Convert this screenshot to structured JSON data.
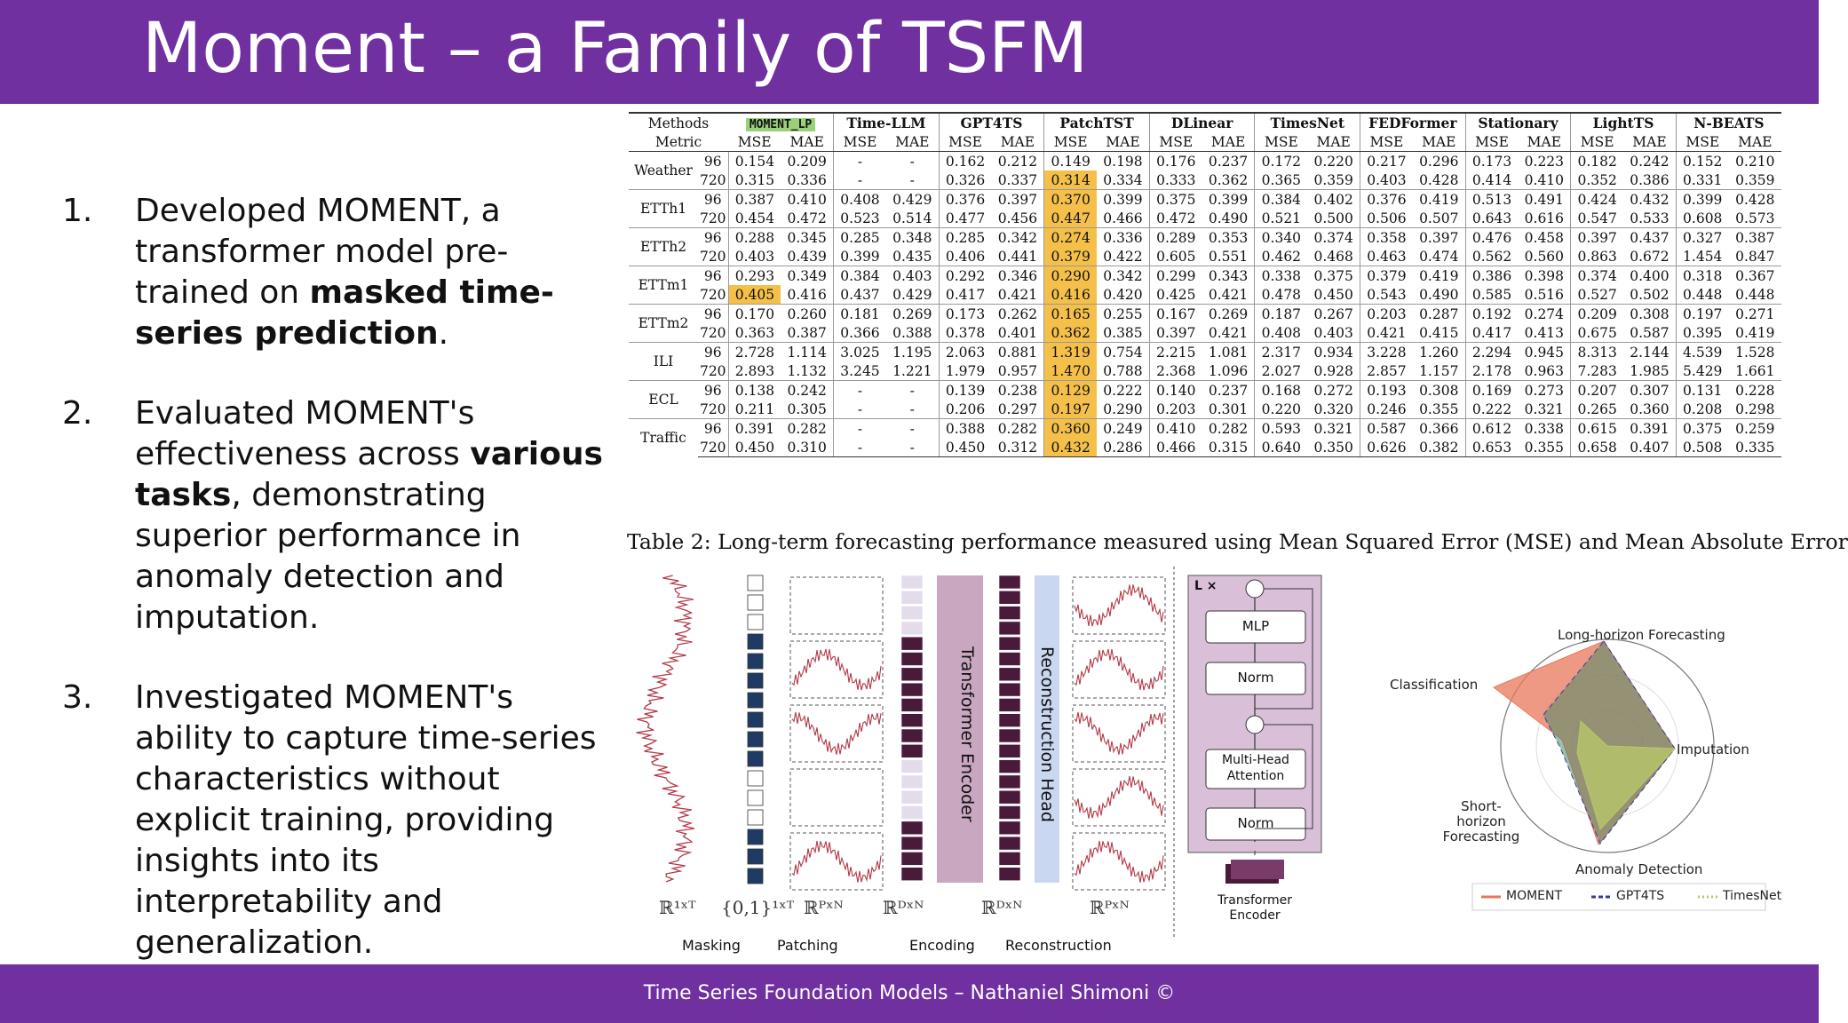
{
  "slide": {
    "title": "Moment – a Family of TSFM",
    "footer": "Time Series Foundation Models – Nathaniel Shimoni ©"
  },
  "bullets": [
    {
      "num": "1.",
      "pre": "Developed MOMENT, a transformer model pre-trained on ",
      "bold": "masked time-series prediction",
      "post": "."
    },
    {
      "num": "2.",
      "pre": "Evaluated MOMENT's effectiveness across ",
      "bold": "various tasks",
      "post": ", demonstrating superior performance in anomaly detection and imputation."
    },
    {
      "num": "3.",
      "pre": "Investigated MOMENT's ability to capture time-series characteristics without explicit training, providing insights into its interpretability and generalization.",
      "bold": "",
      "post": ""
    }
  ],
  "table": {
    "header_methods": "Methods",
    "header_metric": "Metric",
    "methods": [
      "MOMENT_LP",
      "Time-LLM",
      "GPT4TS",
      "PatchTST",
      "DLinear",
      "TimesNet",
      "FEDFormer",
      "Stationary",
      "LightTS",
      "N-BEATS"
    ],
    "metrics": [
      "MSE",
      "MAE"
    ],
    "caption": "Table 2: Long-term forecasting performance measured using Mean Squared Error (MSE) and Mean Absolute Error",
    "rows": [
      {
        "dataset": "Weather",
        "horizon": "96",
        "values": [
          "0.154",
          "0.209",
          "-",
          "-",
          "0.162",
          "0.212",
          "0.149",
          "0.198",
          "0.176",
          "0.237",
          "0.172",
          "0.220",
          "0.217",
          "0.296",
          "0.173",
          "0.223",
          "0.182",
          "0.242",
          "0.152",
          "0.210"
        ]
      },
      {
        "dataset": "",
        "horizon": "720",
        "values": [
          "0.315",
          "0.336",
          "-",
          "-",
          "0.326",
          "0.337",
          "0.314",
          "0.334",
          "0.333",
          "0.362",
          "0.365",
          "0.359",
          "0.403",
          "0.428",
          "0.414",
          "0.410",
          "0.352",
          "0.386",
          "0.331",
          "0.359"
        ]
      },
      {
        "dataset": "ETTh1",
        "horizon": "96",
        "values": [
          "0.387",
          "0.410",
          "0.408",
          "0.429",
          "0.376",
          "0.397",
          "0.370",
          "0.399",
          "0.375",
          "0.399",
          "0.384",
          "0.402",
          "0.376",
          "0.419",
          "0.513",
          "0.491",
          "0.424",
          "0.432",
          "0.399",
          "0.428"
        ]
      },
      {
        "dataset": "",
        "horizon": "720",
        "values": [
          "0.454",
          "0.472",
          "0.523",
          "0.514",
          "0.477",
          "0.456",
          "0.447",
          "0.466",
          "0.472",
          "0.490",
          "0.521",
          "0.500",
          "0.506",
          "0.507",
          "0.643",
          "0.616",
          "0.547",
          "0.533",
          "0.608",
          "0.573"
        ]
      },
      {
        "dataset": "ETTh2",
        "horizon": "96",
        "values": [
          "0.288",
          "0.345",
          "0.285",
          "0.348",
          "0.285",
          "0.342",
          "0.274",
          "0.336",
          "0.289",
          "0.353",
          "0.340",
          "0.374",
          "0.358",
          "0.397",
          "0.476",
          "0.458",
          "0.397",
          "0.437",
          "0.327",
          "0.387"
        ]
      },
      {
        "dataset": "",
        "horizon": "720",
        "values": [
          "0.403",
          "0.439",
          "0.399",
          "0.435",
          "0.406",
          "0.441",
          "0.379",
          "0.422",
          "0.605",
          "0.551",
          "0.462",
          "0.468",
          "0.463",
          "0.474",
          "0.562",
          "0.560",
          "0.863",
          "0.672",
          "1.454",
          "0.847"
        ]
      },
      {
        "dataset": "ETTm1",
        "horizon": "96",
        "values": [
          "0.293",
          "0.349",
          "0.384",
          "0.403",
          "0.292",
          "0.346",
          "0.290",
          "0.342",
          "0.299",
          "0.343",
          "0.338",
          "0.375",
          "0.379",
          "0.419",
          "0.386",
          "0.398",
          "0.374",
          "0.400",
          "0.318",
          "0.367"
        ]
      },
      {
        "dataset": "",
        "horizon": "720",
        "values": [
          "0.405",
          "0.416",
          "0.437",
          "0.429",
          "0.417",
          "0.421",
          "0.416",
          "0.420",
          "0.425",
          "0.421",
          "0.478",
          "0.450",
          "0.543",
          "0.490",
          "0.585",
          "0.516",
          "0.527",
          "0.502",
          "0.448",
          "0.448"
        ]
      },
      {
        "dataset": "ETTm2",
        "horizon": "96",
        "values": [
          "0.170",
          "0.260",
          "0.181",
          "0.269",
          "0.173",
          "0.262",
          "0.165",
          "0.255",
          "0.167",
          "0.269",
          "0.187",
          "0.267",
          "0.203",
          "0.287",
          "0.192",
          "0.274",
          "0.209",
          "0.308",
          "0.197",
          "0.271"
        ]
      },
      {
        "dataset": "",
        "horizon": "720",
        "values": [
          "0.363",
          "0.387",
          "0.366",
          "0.388",
          "0.378",
          "0.401",
          "0.362",
          "0.385",
          "0.397",
          "0.421",
          "0.408",
          "0.403",
          "0.421",
          "0.415",
          "0.417",
          "0.413",
          "0.675",
          "0.587",
          "0.395",
          "0.419"
        ]
      },
      {
        "dataset": "ILI",
        "horizon": "96",
        "values": [
          "2.728",
          "1.114",
          "3.025",
          "1.195",
          "2.063",
          "0.881",
          "1.319",
          "0.754",
          "2.215",
          "1.081",
          "2.317",
          "0.934",
          "3.228",
          "1.260",
          "2.294",
          "0.945",
          "8.313",
          "2.144",
          "4.539",
          "1.528"
        ]
      },
      {
        "dataset": "",
        "horizon": "720",
        "values": [
          "2.893",
          "1.132",
          "3.245",
          "1.221",
          "1.979",
          "0.957",
          "1.470",
          "0.788",
          "2.368",
          "1.096",
          "2.027",
          "0.928",
          "2.857",
          "1.157",
          "2.178",
          "0.963",
          "7.283",
          "1.985",
          "5.429",
          "1.661"
        ]
      },
      {
        "dataset": "ECL",
        "horizon": "96",
        "values": [
          "0.138",
          "0.242",
          "-",
          "-",
          "0.139",
          "0.238",
          "0.129",
          "0.222",
          "0.140",
          "0.237",
          "0.168",
          "0.272",
          "0.193",
          "0.308",
          "0.169",
          "0.273",
          "0.207",
          "0.307",
          "0.131",
          "0.228"
        ]
      },
      {
        "dataset": "",
        "horizon": "720",
        "values": [
          "0.211",
          "0.305",
          "-",
          "-",
          "0.206",
          "0.297",
          "0.197",
          "0.290",
          "0.203",
          "0.301",
          "0.220",
          "0.320",
          "0.246",
          "0.355",
          "0.222",
          "0.321",
          "0.265",
          "0.360",
          "0.208",
          "0.298"
        ]
      },
      {
        "dataset": "Traffic",
        "horizon": "96",
        "values": [
          "0.391",
          "0.282",
          "-",
          "-",
          "0.388",
          "0.282",
          "0.360",
          "0.249",
          "0.410",
          "0.282",
          "0.593",
          "0.321",
          "0.587",
          "0.366",
          "0.612",
          "0.338",
          "0.615",
          "0.391",
          "0.375",
          "0.259"
        ]
      },
      {
        "dataset": "",
        "horizon": "720",
        "values": [
          "0.450",
          "0.310",
          "-",
          "-",
          "0.450",
          "0.312",
          "0.432",
          "0.286",
          "0.466",
          "0.315",
          "0.640",
          "0.350",
          "0.626",
          "0.382",
          "0.653",
          "0.355",
          "0.658",
          "0.407",
          "0.508",
          "0.335"
        ]
      }
    ],
    "highlight": [
      [
        1,
        6
      ],
      [
        2,
        6
      ],
      [
        3,
        6
      ],
      [
        4,
        6
      ],
      [
        5,
        6
      ],
      [
        6,
        6
      ],
      [
        7,
        0
      ],
      [
        7,
        6
      ],
      [
        8,
        6
      ],
      [
        9,
        6
      ],
      [
        10,
        6
      ],
      [
        11,
        6
      ],
      [
        12,
        6
      ],
      [
        13,
        6
      ],
      [
        14,
        6
      ],
      [
        15,
        6
      ]
    ],
    "highlight_color": "#f5c04a",
    "moment_color": "#9ad07a"
  },
  "diagram": {
    "stage_labels": [
      "Masking",
      "Patching",
      "Encoding",
      "Reconstruction"
    ],
    "block_labels": {
      "encoder": "Transformer Encoder",
      "head": "Reconstruction Head"
    },
    "dims": [
      "ℝ¹ˣᵀ",
      "{0,1}¹ˣᵀ",
      "ℝᴾˣᴺ",
      "ℝᴰˣᴺ",
      "ℝᴰˣᴺ",
      "ℝᴾˣᴺ"
    ],
    "transformer_block": {
      "repeat": "L ×",
      "layers": [
        "MLP",
        "Norm",
        "Multi-Head Attention",
        "Norm"
      ],
      "caption": "Transformer Encoder"
    },
    "colors": {
      "series": "#b23a48",
      "mask_dark": "#1f3b63",
      "encoder": "#c9a7c0",
      "head": "#c9d7f0",
      "patch": "#4a1a3a",
      "block_bg": "#d9c0d8"
    }
  },
  "radar": {
    "axes": [
      "Long-horizon Forecasting",
      "Imputation",
      "Anomaly Detection",
      "Short-horizon Forecasting",
      "Classification"
    ],
    "legend": [
      "MOMENT",
      "GPT4TS",
      "TimesNet"
    ],
    "series_colors": {
      "MOMENT": "#e8775a",
      "GPT4TS": "#3a3aa8",
      "TimesNet": "#b8c66a"
    }
  }
}
